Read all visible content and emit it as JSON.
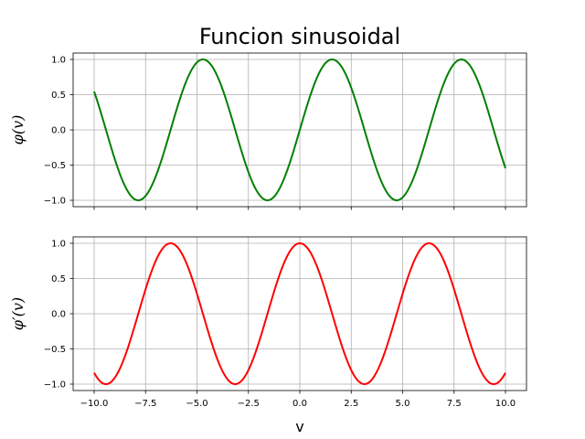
{
  "chart_data": {
    "type": "line",
    "title": "Funcion sinusoidal",
    "xlabel": "v",
    "xlim": [
      -10.0,
      10.0
    ],
    "xticks": [
      "−10.0",
      "−7.5",
      "−5.0",
      "−2.5",
      "0.0",
      "2.5",
      "5.0",
      "7.5",
      "10.0"
    ],
    "xtick_values": [
      -10,
      -7.5,
      -5,
      -2.5,
      0,
      2.5,
      5,
      7.5,
      10
    ],
    "grid": true,
    "subplots": [
      {
        "ylabel": "φ(v)",
        "ylim": [
          -1.0,
          1.0
        ],
        "yticks": [
          "1.0",
          "0.5",
          "0.0",
          "−0.5",
          "−1.0"
        ],
        "ytick_values": [
          1,
          0.5,
          0,
          -0.5,
          -1
        ],
        "series": [
          {
            "function": "sin(v)",
            "color": "#008000",
            "x": [
              -10,
              -9,
              -8,
              -7,
              -6,
              -5,
              -4,
              -3,
              -2,
              -1,
              0,
              1,
              2,
              3,
              4,
              5,
              6,
              7,
              8,
              9,
              10
            ],
            "y": [
              0.544,
              -0.412,
              -0.989,
              -0.657,
              0.279,
              0.959,
              0.757,
              -0.141,
              -0.909,
              -0.841,
              0.0,
              0.841,
              0.909,
              0.141,
              -0.757,
              -0.959,
              -0.279,
              0.657,
              0.989,
              0.412,
              -0.544
            ]
          }
        ]
      },
      {
        "ylabel": "φ′(v)",
        "ylim": [
          -1.0,
          1.0
        ],
        "yticks": [
          "1.0",
          "0.5",
          "0.0",
          "−0.5",
          "−1.0"
        ],
        "ytick_values": [
          1,
          0.5,
          0,
          -0.5,
          -1
        ],
        "series": [
          {
            "function": "cos(v)",
            "color": "#ff0000",
            "x": [
              -10,
              -9,
              -8,
              -7,
              -6,
              -5,
              -4,
              -3,
              -2,
              -1,
              0,
              1,
              2,
              3,
              4,
              5,
              6,
              7,
              8,
              9,
              10
            ],
            "y": [
              -0.839,
              -0.911,
              -0.146,
              0.754,
              0.96,
              0.284,
              -0.654,
              -0.99,
              -0.416,
              0.54,
              1.0,
              0.54,
              -0.416,
              -0.99,
              -0.654,
              0.284,
              0.96,
              0.754,
              -0.146,
              -0.911,
              -0.839
            ]
          }
        ]
      }
    ]
  }
}
